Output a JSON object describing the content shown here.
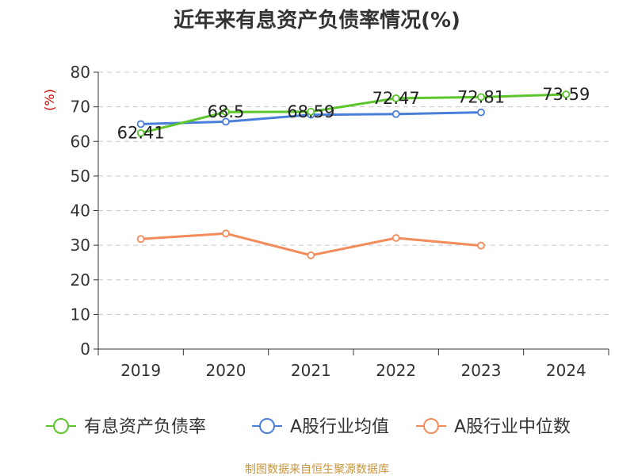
{
  "chart_data": {
    "type": "line",
    "title": "近年来有息资产负债率情况(%)",
    "ylabel": "(%)",
    "ylim": [
      0,
      80
    ],
    "yticks": [
      0,
      10,
      20,
      30,
      40,
      50,
      60,
      70,
      80
    ],
    "categories": [
      "2019",
      "2020",
      "2021",
      "2022",
      "2023",
      "2024"
    ],
    "grid": true,
    "legend_position": "bottom",
    "series": [
      {
        "name": "有息资产负债率",
        "color": "#5cc52b",
        "values": [
          62.41,
          68.5,
          68.59,
          72.47,
          72.81,
          73.59
        ],
        "data_labels": [
          "62.41",
          "68.5",
          "68.59",
          "72.47",
          "72.81",
          "73.59"
        ]
      },
      {
        "name": "A股行业均值",
        "color": "#4a7fd9",
        "values": [
          65.0,
          65.7,
          67.7,
          67.9,
          68.4,
          null
        ]
      },
      {
        "name": "A股行业中位数",
        "color": "#f38b5a",
        "values": [
          31.8,
          33.4,
          27.1,
          32.1,
          29.9,
          null
        ]
      }
    ]
  },
  "source_note": "制图数据来自恒生聚源数据库"
}
